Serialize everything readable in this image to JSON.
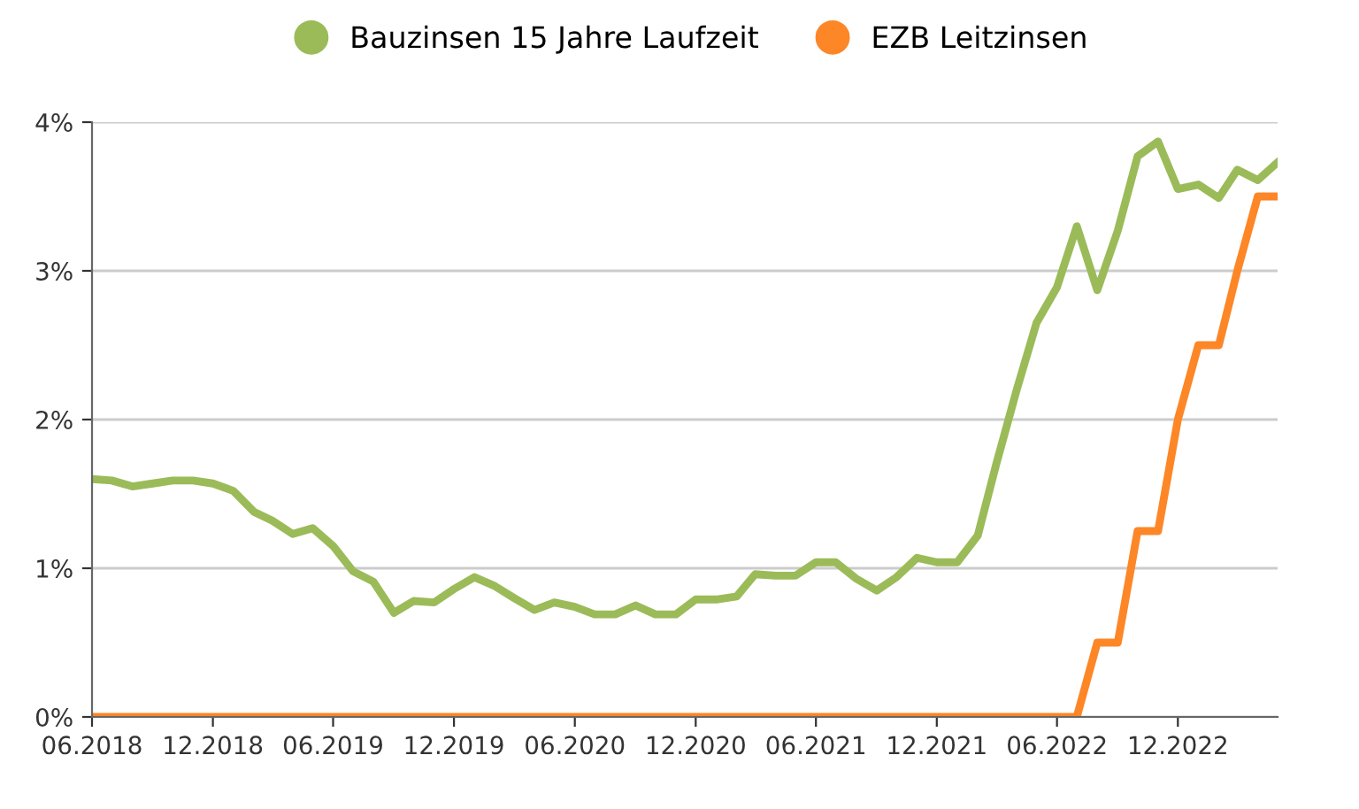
{
  "chart_data": {
    "type": "line",
    "x": [
      "2018-06",
      "2018-07",
      "2018-08",
      "2018-09",
      "2018-10",
      "2018-11",
      "2018-12",
      "2019-01",
      "2019-02",
      "2019-03",
      "2019-04",
      "2019-05",
      "2019-06",
      "2019-07",
      "2019-08",
      "2019-09",
      "2019-10",
      "2019-11",
      "2019-12",
      "2020-01",
      "2020-02",
      "2020-03",
      "2020-04",
      "2020-05",
      "2020-06",
      "2020-07",
      "2020-08",
      "2020-09",
      "2020-10",
      "2020-11",
      "2020-12",
      "2021-01",
      "2021-02",
      "2021-03",
      "2021-04",
      "2021-05",
      "2021-06",
      "2021-07",
      "2021-08",
      "2021-09",
      "2021-10",
      "2021-11",
      "2021-12",
      "2022-01",
      "2022-02",
      "2022-03",
      "2022-04",
      "2022-05",
      "2022-06",
      "2022-07",
      "2022-08",
      "2022-09",
      "2022-10",
      "2022-11",
      "2022-12",
      "2023-01",
      "2023-02",
      "2023-03",
      "2023-04",
      "2023-05"
    ],
    "series": [
      {
        "name": "Bauzinsen 15 Jahre Laufzeit",
        "color": "#9bbb59",
        "values": [
          1.6,
          1.59,
          1.55,
          1.57,
          1.59,
          1.59,
          1.57,
          1.52,
          1.38,
          1.32,
          1.23,
          1.27,
          1.15,
          0.98,
          0.91,
          0.7,
          0.78,
          0.77,
          0.86,
          0.94,
          0.88,
          0.8,
          0.72,
          0.77,
          0.74,
          0.69,
          0.69,
          0.75,
          0.69,
          0.69,
          0.79,
          0.79,
          0.81,
          0.96,
          0.95,
          0.95,
          1.04,
          1.04,
          0.93,
          0.85,
          0.94,
          1.07,
          1.04,
          1.04,
          1.22,
          1.7,
          2.2,
          2.65,
          2.89,
          3.3,
          2.87,
          3.27,
          3.77,
          3.87,
          3.55,
          3.58,
          3.49,
          3.68,
          3.61,
          3.73
        ]
      },
      {
        "name": "EZB Leitzinsen",
        "color": "#fd8627",
        "values": [
          0,
          0,
          0,
          0,
          0,
          0,
          0,
          0,
          0,
          0,
          0,
          0,
          0,
          0,
          0,
          0,
          0,
          0,
          0,
          0,
          0,
          0,
          0,
          0,
          0,
          0,
          0,
          0,
          0,
          0,
          0,
          0,
          0,
          0,
          0,
          0,
          0,
          0,
          0,
          0,
          0,
          0,
          0,
          0,
          0,
          0,
          0,
          0,
          0,
          0,
          0.5,
          0.5,
          1.25,
          1.25,
          2.0,
          2.5,
          2.5,
          3.0,
          3.5,
          3.5
        ]
      }
    ],
    "xlim": [
      "2018-06",
      "2023-05"
    ],
    "xticks": [
      {
        "value": "2018-06",
        "label": "06.2018"
      },
      {
        "value": "2018-12",
        "label": "12.2018"
      },
      {
        "value": "2019-06",
        "label": "06.2019"
      },
      {
        "value": "2019-12",
        "label": "12.2019"
      },
      {
        "value": "2020-06",
        "label": "06.2020"
      },
      {
        "value": "2020-12",
        "label": "12.2020"
      },
      {
        "value": "2021-06",
        "label": "06.2021"
      },
      {
        "value": "2021-12",
        "label": "12.2021"
      },
      {
        "value": "2022-06",
        "label": "06.2022"
      },
      {
        "value": "2022-12",
        "label": "12.2022"
      }
    ],
    "ylim": [
      0,
      4
    ],
    "yticks": [
      {
        "value": 0,
        "label": "0%"
      },
      {
        "value": 1,
        "label": "1%"
      },
      {
        "value": 2,
        "label": "2%"
      },
      {
        "value": 3,
        "label": "3%"
      },
      {
        "value": 4,
        "label": "4%"
      }
    ],
    "grid": "y",
    "legend": "top",
    "marker": "none",
    "line_style": "solid"
  }
}
